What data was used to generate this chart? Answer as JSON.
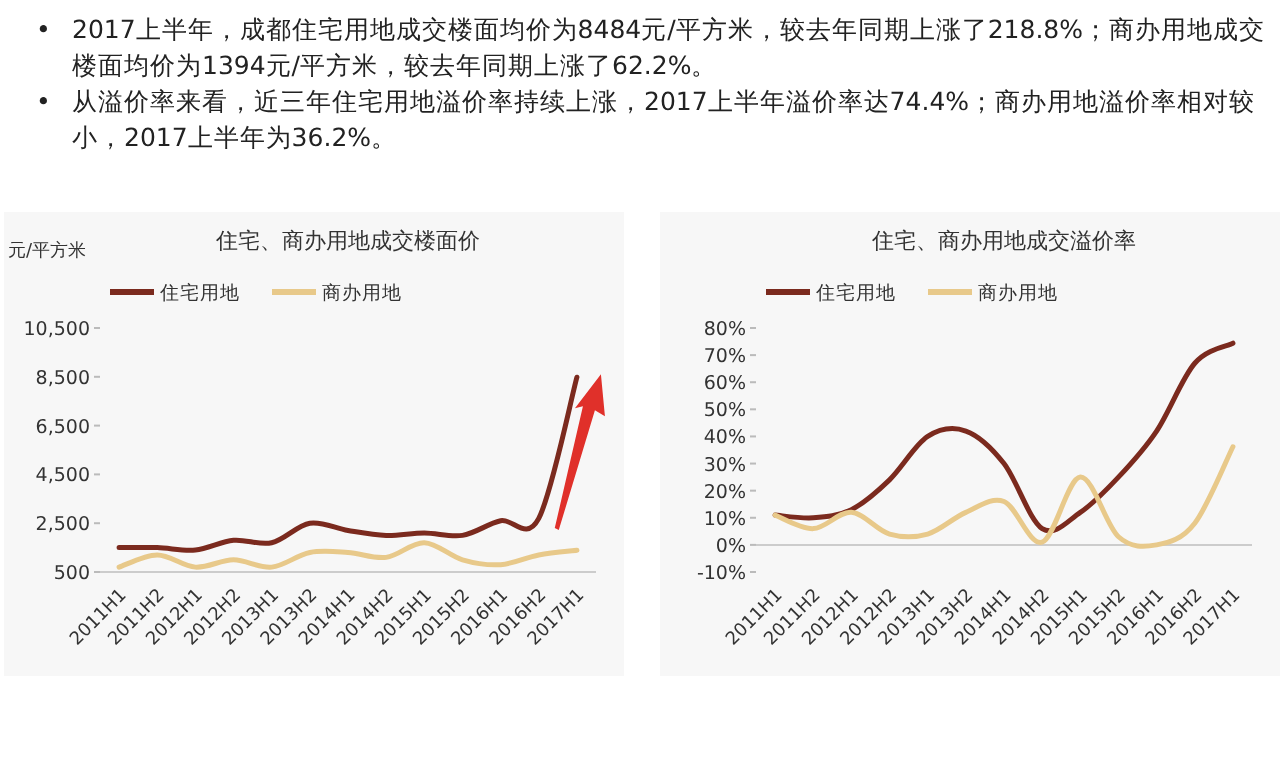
{
  "chart_data": [
    {
      "type": "other",
      "annotations": [
        "•\t2017上半年，成都住宅用地成交楼面均价为8484元/平方米，较去年同期上涨了218.8%；商办用地成交楼面均价为1394元/平方米，较去年同期上涨了62.2%。",
        "•\t从溢价率来看，近三年住宅用地溢价率持续上涨，2017上半年溢价率达74.4%；商办用地溢价率相对较小，2017上半年为36.2%。"
      ]
    },
    {
      "type": "line",
      "title": "住宅、商办用地成交楼面价",
      "ylabel": "元/平方米",
      "legend": "top",
      "categories": [
        "2011H1",
        "2011H2",
        "2012H1",
        "2012H2",
        "2013H1",
        "2013H2",
        "2014H1",
        "2014H2",
        "2015H1",
        "2015H2",
        "2016H1",
        "2016H2",
        "2017H1"
      ],
      "ylim": [
        500,
        10500
      ],
      "yticks": [
        {
          "value": 500,
          "label": "500"
        },
        {
          "value": 2500,
          "label": "2,500"
        },
        {
          "value": 4500,
          "label": "4,500"
        },
        {
          "value": 6500,
          "label": "6,500"
        },
        {
          "value": 8500,
          "label": "8,500"
        },
        {
          "value": 10500,
          "label": "10,500"
        }
      ],
      "series": [
        {
          "name": "住宅用地",
          "color": "#7b2a1e",
          "values": [
            1500,
            1500,
            1400,
            1800,
            1700,
            2500,
            2200,
            2000,
            2100,
            2000,
            2600,
            2700,
            8484
          ]
        },
        {
          "name": "商办用地",
          "color": "#e8c98a",
          "values": [
            700,
            1200,
            700,
            1000,
            700,
            1300,
            1300,
            1100,
            1700,
            1000,
            800,
            1200,
            1394
          ]
        }
      ]
    },
    {
      "type": "line",
      "title": "住宅、商办用地成交溢价率",
      "legend": "top",
      "categories": [
        "2011H1",
        "2011H2",
        "2012H1",
        "2012H2",
        "2013H1",
        "2013H2",
        "2014H1",
        "2014H2",
        "2015H1",
        "2015H2",
        "2016H1",
        "2016H2",
        "2017H1"
      ],
      "ylim": [
        -10,
        80
      ],
      "yticks": [
        {
          "value": -10,
          "label": "-10%"
        },
        {
          "value": 0,
          "label": "0%"
        },
        {
          "value": 10,
          "label": "10%"
        },
        {
          "value": 20,
          "label": "20%"
        },
        {
          "value": 30,
          "label": "30%"
        },
        {
          "value": 40,
          "label": "40%"
        },
        {
          "value": 50,
          "label": "50%"
        },
        {
          "value": 60,
          "label": "60%"
        },
        {
          "value": 70,
          "label": "70%"
        },
        {
          "value": 80,
          "label": "80%"
        }
      ],
      "series": [
        {
          "name": "住宅用地",
          "color": "#7b2a1e",
          "values": [
            11,
            10,
            13,
            24,
            40,
            42,
            30,
            6,
            12,
            25,
            42,
            67,
            74.4
          ]
        },
        {
          "name": "商办用地",
          "color": "#e8c98a",
          "values": [
            11,
            6,
            12,
            4,
            4,
            12,
            16,
            1,
            25,
            3,
            0,
            8,
            36.2
          ]
        }
      ]
    }
  ]
}
